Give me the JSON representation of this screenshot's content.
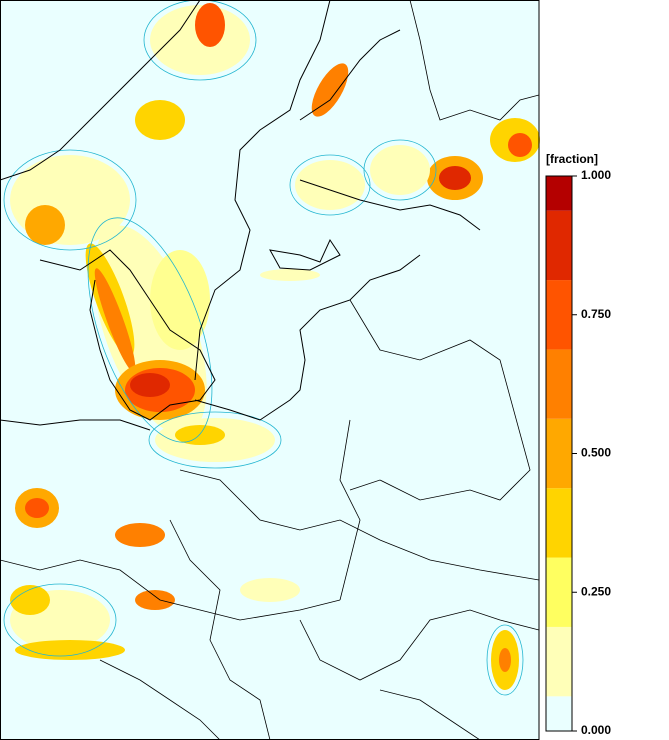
{
  "colorbar": {
    "label": "[fraction]",
    "range": [
      0,
      1
    ],
    "ticks": [
      {
        "value": 0,
        "label": "0.000"
      },
      {
        "value": 0.25,
        "label": "0.250"
      },
      {
        "value": 0.5,
        "label": "0.500"
      },
      {
        "value": 0.75,
        "label": "0.750"
      },
      {
        "value": 1,
        "label": "1.000"
      }
    ],
    "bounds": [
      0,
      0.0625,
      0.1875,
      0.3125,
      0.4375,
      0.5625,
      0.6875,
      0.8125,
      0.9375,
      1
    ],
    "colors": [
      "#eaffff",
      "#ffffb8",
      "#ffff60",
      "#ffd400",
      "#ffa800",
      "#ff8000",
      "#ff5400",
      "#e02800",
      "#b40000"
    ]
  }
}
